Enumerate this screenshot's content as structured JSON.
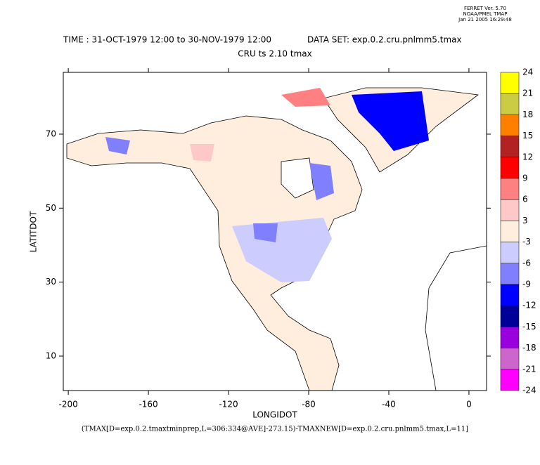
{
  "header": {
    "version": "FERRET Ver. 5.70",
    "org": "NOAA/PMEL TMAP",
    "date": "Jan 21 2005 16:29:48"
  },
  "chart_data": {
    "type": "map",
    "title": "TIME : 31-OCT-1979 12:00 to 30-NOV-1979 12:00",
    "dataset": "DATA SET: exp.0.2.cru.pnlmm5.tmax",
    "subtitle": "CRU ts 2.10 tmax",
    "x_label": "LONGIDOT",
    "y_label": "LATITDOT",
    "xlim": [
      -202.5,
      8.8
    ],
    "ylim": [
      0.7,
      86.7
    ],
    "xticks": [
      -200,
      -160,
      -120,
      -80,
      -40,
      0
    ],
    "yticks": [
      10,
      30,
      50,
      70
    ],
    "colorbar": {
      "levels": [
        24,
        21,
        18,
        15,
        12,
        9,
        6,
        3,
        -3,
        -6,
        -9,
        -12,
        -15,
        -18,
        -21,
        -24
      ],
      "colors": [
        "#ffff00",
        "#cccc44",
        "#ff8000",
        "#b22222",
        "#ff0000",
        "#ff8080",
        "#ffc8c8",
        "#ffeedd",
        "#ccccff",
        "#8080ff",
        "#0000ff",
        "#000099",
        "#9900dd",
        "#cc66cc",
        "#ff00ff"
      ]
    },
    "footer": "(TMAX[D=exp.0.2.tmaxtminprep,L=306:334@AVE]-273.15)-TMAXNEW[D=exp.0.2.cru.pnlmm5.tmax,L=11]"
  }
}
